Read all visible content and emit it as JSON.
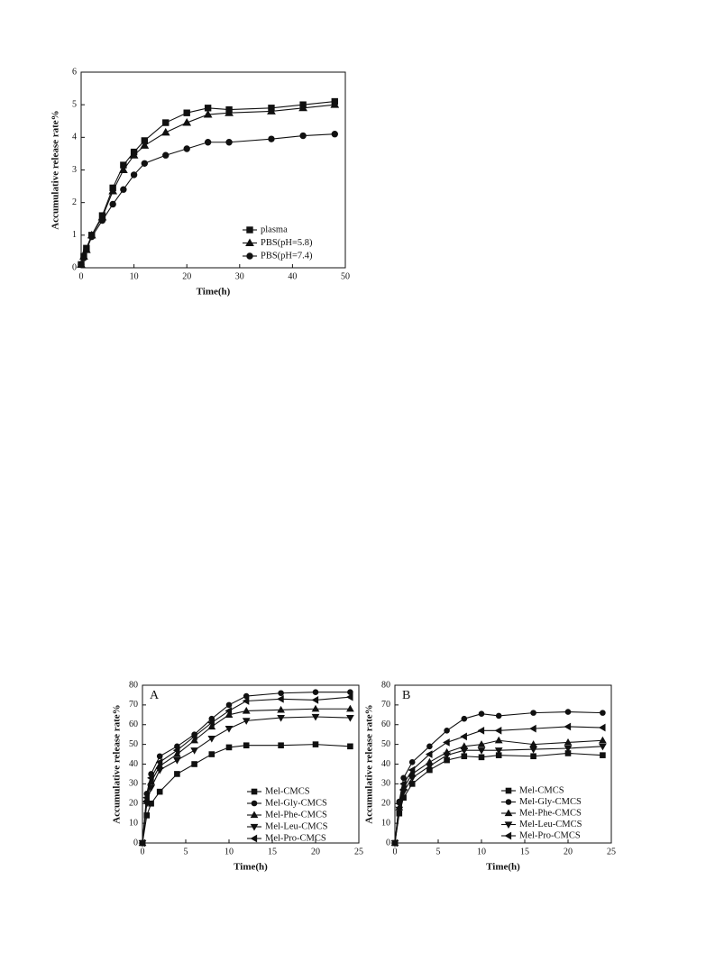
{
  "chart_data": [
    {
      "type": "line",
      "xlabel": "Time(h)",
      "ylabel": "Accumulative release rate%",
      "x": [
        0,
        0.5,
        1,
        2,
        4,
        6,
        8,
        10,
        12,
        16,
        20,
        24,
        28,
        36,
        42,
        48
      ],
      "xlim": [
        0,
        50
      ],
      "xticks": [
        0,
        10,
        20,
        30,
        40,
        50
      ],
      "ylim": [
        0,
        6
      ],
      "yticks": [
        0,
        1,
        2,
        3,
        4,
        5,
        6
      ],
      "legend": "lower right",
      "series": [
        {
          "name": "plasma",
          "color": "#111111",
          "marker": "square",
          "values": [
            0.1,
            0.35,
            0.6,
            1.0,
            1.6,
            2.45,
            3.15,
            3.55,
            3.9,
            4.45,
            4.75,
            4.9,
            4.85,
            4.9,
            5.0,
            5.1
          ]
        },
        {
          "name": "PBS(pH=5.8)",
          "color": "#111111",
          "marker": "triangle-up",
          "values": [
            0.1,
            0.35,
            0.55,
            1.0,
            1.55,
            2.35,
            3.0,
            3.45,
            3.75,
            4.15,
            4.45,
            4.7,
            4.75,
            4.8,
            4.9,
            5.0
          ]
        },
        {
          "name": "PBS(pH=7.4)",
          "color": "#111111",
          "marker": "circle",
          "values": [
            0.1,
            0.3,
            0.55,
            0.95,
            1.45,
            1.95,
            2.4,
            2.85,
            3.2,
            3.45,
            3.65,
            3.85,
            3.85,
            3.95,
            4.05,
            4.1
          ]
        }
      ]
    },
    {
      "type": "line",
      "annotation": "A",
      "xlabel": "Time(h)",
      "ylabel": "Accumulative release rate%",
      "x": [
        0,
        0.5,
        1,
        2,
        4,
        6,
        8,
        10,
        12,
        16,
        20,
        24
      ],
      "xlim": [
        0,
        25
      ],
      "xticks": [
        0,
        5,
        10,
        15,
        20,
        25
      ],
      "ylim": [
        0,
        80
      ],
      "yticks": [
        0,
        10,
        20,
        30,
        40,
        50,
        60,
        70,
        80
      ],
      "legend": "lower right",
      "series": [
        {
          "name": "Mel-CMCS",
          "color": "#111111",
          "marker": "square",
          "values": [
            0,
            14,
            20,
            26,
            35,
            40,
            45,
            48.5,
            49.5,
            49.5,
            50,
            49
          ]
        },
        {
          "name": "Mel-Gly-CMCS",
          "color": "#111111",
          "marker": "circle",
          "values": [
            0,
            25,
            35,
            44,
            49,
            55,
            63,
            70,
            74.5,
            76,
            76.5,
            76.5
          ]
        },
        {
          "name": "Mel-Phe-CMCS",
          "color": "#111111",
          "marker": "triangle-up",
          "values": [
            0,
            22,
            31,
            39,
            45,
            52,
            59,
            65,
            67,
            67.5,
            68,
            68
          ]
        },
        {
          "name": "Mel-Leu-CMCS",
          "color": "#111111",
          "marker": "triangle-down",
          "values": [
            0,
            20,
            28,
            37,
            42,
            47,
            53,
            58,
            62,
            63.5,
            64,
            63.5
          ]
        },
        {
          "name": "Mel-Pro-CMCS",
          "color": "#111111",
          "marker": "triangle-left",
          "values": [
            0,
            23,
            33,
            41,
            47,
            54,
            61,
            67,
            72,
            73,
            72.5,
            74
          ]
        }
      ]
    },
    {
      "type": "line",
      "annotation": "B",
      "xlabel": "Time(h)",
      "ylabel": "Accumulative release rate%",
      "x": [
        0,
        0.5,
        1,
        2,
        4,
        6,
        8,
        10,
        12,
        16,
        20,
        24
      ],
      "xlim": [
        0,
        25
      ],
      "xticks": [
        0,
        5,
        10,
        15,
        20,
        25
      ],
      "ylim": [
        0,
        80
      ],
      "yticks": [
        0,
        10,
        20,
        30,
        40,
        50,
        60,
        70,
        80
      ],
      "legend": "lower right",
      "series": [
        {
          "name": "Mel-CMCS",
          "color": "#111111",
          "marker": "square",
          "values": [
            0,
            15,
            23,
            30,
            37,
            42,
            44,
            43.5,
            44.5,
            44,
            45.5,
            44.5
          ]
        },
        {
          "name": "Mel-Gly-CMCS",
          "color": "#111111",
          "marker": "circle",
          "values": [
            0,
            21,
            33,
            41,
            49,
            57,
            63,
            65.5,
            64.5,
            66,
            66.5,
            66
          ]
        },
        {
          "name": "Mel-Phe-CMCS",
          "color": "#111111",
          "marker": "triangle-up",
          "values": [
            0,
            18,
            28,
            35,
            41,
            46,
            49,
            50,
            52,
            50,
            51,
            52
          ]
        },
        {
          "name": "Mel-Leu-CMCS",
          "color": "#111111",
          "marker": "triangle-down",
          "values": [
            0,
            17,
            26,
            33,
            39,
            44.5,
            47,
            47,
            47,
            47.5,
            48,
            49
          ]
        },
        {
          "name": "Mel-Pro-CMCS",
          "color": "#111111",
          "marker": "triangle-left",
          "values": [
            0,
            20,
            30,
            37,
            45,
            51,
            54,
            57,
            57,
            58,
            59,
            58.5
          ]
        }
      ]
    }
  ]
}
